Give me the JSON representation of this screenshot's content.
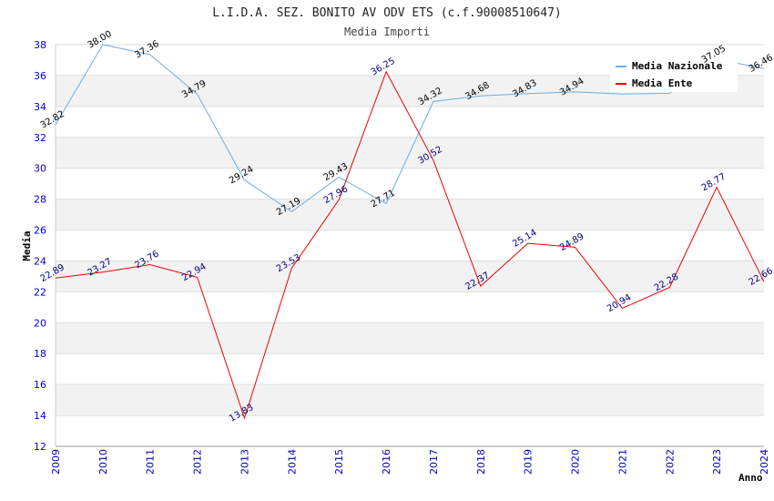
{
  "chart_data": {
    "type": "line",
    "title": "L.I.D.A. SEZ. BONITO AV ODV ETS (c.f.90008510647)",
    "subtitle": "Media Importi",
    "xlabel": "Anno",
    "ylabel": "Media",
    "ylim": [
      12,
      38
    ],
    "yticks": [
      "12",
      "14",
      "16",
      "18",
      "20",
      "22",
      "24",
      "26",
      "28",
      "30",
      "32",
      "34",
      "36",
      "38"
    ],
    "categories": [
      "2009",
      "2010",
      "2011",
      "2012",
      "2013",
      "2014",
      "2015",
      "2016",
      "2017",
      "2018",
      "2019",
      "2020",
      "2021",
      "2022",
      "2023",
      "2024"
    ],
    "series": [
      {
        "name": "Media Nazionale",
        "color": "#6aaee8",
        "label_color": "#000000",
        "values": [
          32.82,
          38.0,
          37.36,
          34.79,
          29.24,
          27.19,
          29.43,
          27.71,
          34.32,
          34.68,
          34.83,
          34.94,
          34.8,
          34.85,
          37.05,
          36.46
        ],
        "labels": [
          "32.82",
          "38.00",
          "37.36",
          "34.79",
          "29.24",
          "27.19",
          "29.43",
          "27.71",
          "34.32",
          "34.68",
          "34.83",
          "34.94",
          "",
          "",
          "37.05",
          "36.46"
        ]
      },
      {
        "name": "Media Ente",
        "color": "#ee0000",
        "label_color": "#000080",
        "values": [
          22.89,
          23.27,
          23.76,
          22.94,
          13.83,
          23.53,
          27.96,
          36.25,
          30.52,
          22.37,
          25.14,
          24.89,
          20.94,
          22.28,
          28.77,
          22.66
        ],
        "labels": [
          "22.89",
          "23.27",
          "23.76",
          "22.94",
          "13.83",
          "23.53",
          "27.96",
          "36.25",
          "30.52",
          "22.37",
          "25.14",
          "24.89",
          "20.94",
          "22.28",
          "28.77",
          "22.66"
        ]
      }
    ],
    "legend_position": "top-right",
    "grid": true
  }
}
